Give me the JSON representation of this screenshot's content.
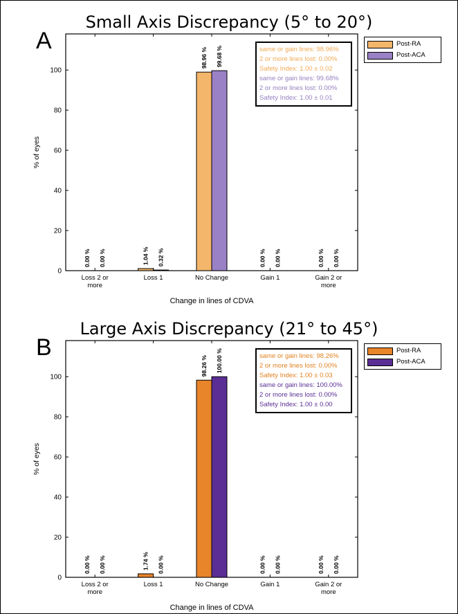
{
  "chart_data": [
    {
      "type": "bar",
      "panel_label": "A",
      "title": "Small Axis Discrepancy (5° to 20°)",
      "xlabel": "Change in lines of CDVA",
      "ylabel": "% of eyes",
      "ylim": [
        0,
        118
      ],
      "yticks": [
        0,
        20,
        40,
        60,
        80,
        100
      ],
      "grid": false,
      "legend_position": "outside-top-right",
      "categories": [
        "Loss 2 or more",
        "Loss 1",
        "No Change",
        "Gain 1",
        "Gain 2 or more"
      ],
      "category_tick_labels": [
        [
          "Loss 2 or",
          "more"
        ],
        [
          "Loss 1"
        ],
        [
          "No Change"
        ],
        [
          "Gain 1"
        ],
        [
          "Gain 2 or",
          "more"
        ]
      ],
      "series": [
        {
          "name": "Post-RA",
          "color": "#F4B66A",
          "values": [
            0.0,
            1.04,
            98.96,
            0.0,
            0.0
          ],
          "data_labels": [
            "0.00 %",
            "1.04 %",
            "98.96 %",
            "0.00 %",
            "0.00 %"
          ]
        },
        {
          "name": "Post-ACA",
          "color": "#9A80C4",
          "values": [
            0.0,
            0.32,
            99.68,
            0.0,
            0.0
          ],
          "data_labels": [
            "0.00 %",
            "0.32 %",
            "99.68 %",
            "0.00 %",
            "0.00 %"
          ]
        }
      ],
      "annotations": [
        {
          "text": "same or gain lines: 98.96%",
          "color": "#F0AA55"
        },
        {
          "text": "2 or more lines lost: 0.00%",
          "color": "#F0AA55"
        },
        {
          "text": "Safety Index: 1.00 ± 0.02",
          "color": "#F0AA55"
        },
        {
          "text": "same or gain lines: 99.68%",
          "color": "#9680C0"
        },
        {
          "text": "2 or more lines lost: 0.00%",
          "color": "#9680C0"
        },
        {
          "text": "Safety Index: 1.00 ± 0.01",
          "color": "#9680C0"
        }
      ]
    },
    {
      "type": "bar",
      "panel_label": "B",
      "title": "Large Axis Discrepancy (21° to 45°)",
      "xlabel": "Change in lines of CDVA",
      "ylabel": "% of eyes",
      "ylim": [
        0,
        118
      ],
      "yticks": [
        0,
        20,
        40,
        60,
        80,
        100
      ],
      "grid": false,
      "legend_position": "outside-top-right",
      "categories": [
        "Loss 2 or more",
        "Loss 1",
        "No Change",
        "Gain 1",
        "Gain 2 or more"
      ],
      "category_tick_labels": [
        [
          "Loss 2 or",
          "more"
        ],
        [
          "Loss 1"
        ],
        [
          "No Change"
        ],
        [
          "Gain 1"
        ],
        [
          "Gain 2 or",
          "more"
        ]
      ],
      "series": [
        {
          "name": "Post-RA",
          "color": "#E8842A",
          "values": [
            0.0,
            1.74,
            98.26,
            0.0,
            0.0
          ],
          "data_labels": [
            "0.00 %",
            "1.74 %",
            "98.26 %",
            "0.00 %",
            "0.00 %"
          ]
        },
        {
          "name": "Post-ACA",
          "color": "#5A2E94",
          "values": [
            0.0,
            0.0,
            100.0,
            0.0,
            0.0
          ],
          "data_labels": [
            "0.00 %",
            "0.00 %",
            "100.00 %",
            "0.00 %",
            "0.00 %"
          ]
        }
      ],
      "annotations": [
        {
          "text": "same or gain lines: 98.26%",
          "color": "#E0801E"
        },
        {
          "text": "2 or more lines lost: 0.00%",
          "color": "#E0801E"
        },
        {
          "text": "Safety Index: 1.00 ± 0.03",
          "color": "#E0801E"
        },
        {
          "text": "same or gain lines: 100.00%",
          "color": "#5A2E94"
        },
        {
          "text": "2 or more lines lost: 0.00%",
          "color": "#5A2E94"
        },
        {
          "text": "Safety Index: 1.00 ± 0.00",
          "color": "#5A2E94"
        }
      ]
    }
  ]
}
